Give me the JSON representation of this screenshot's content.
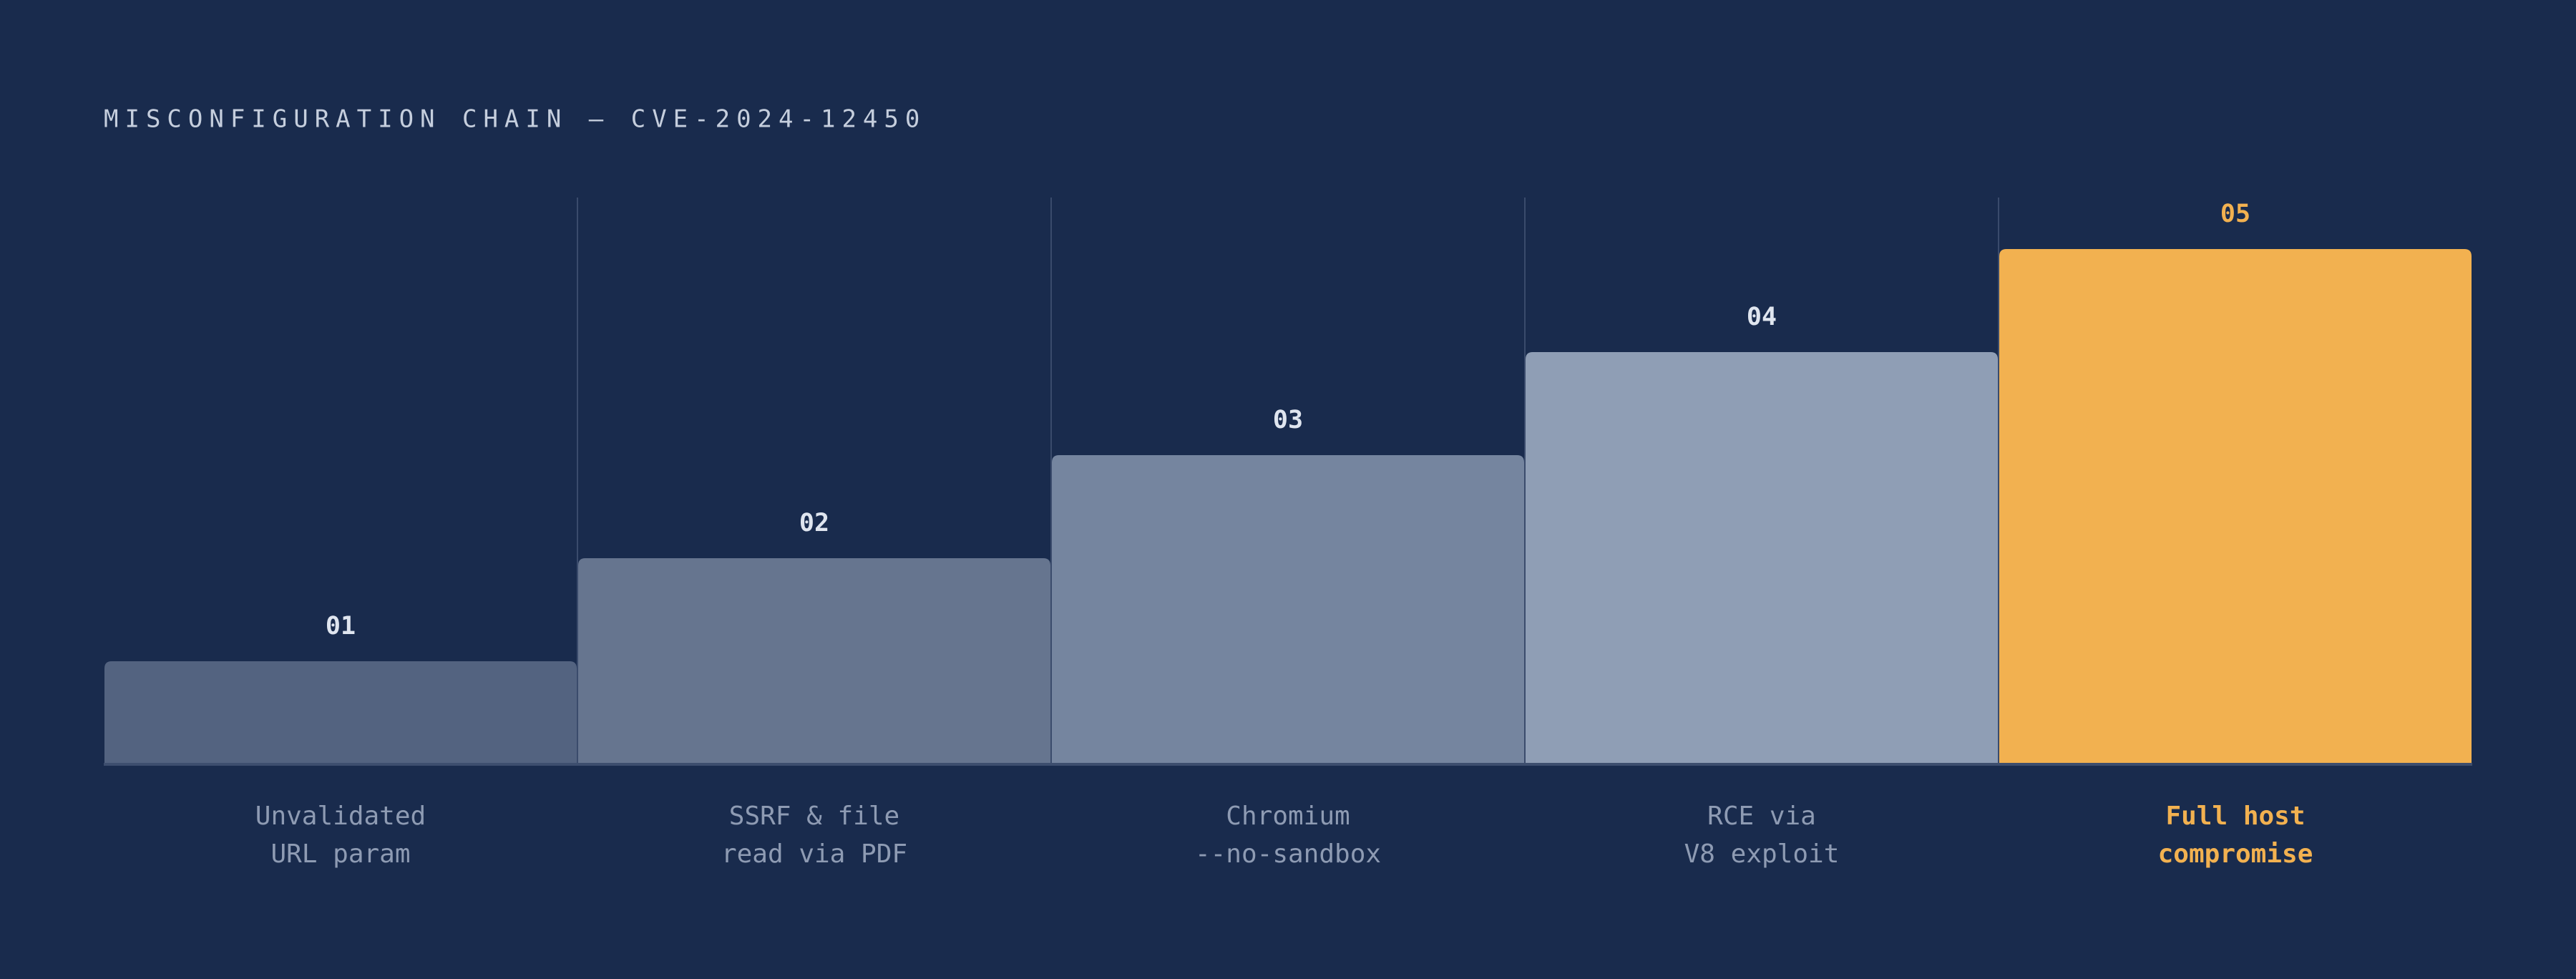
{
  "chart_data": {
    "type": "bar",
    "title": "MISCONFIGURATION CHAIN — CVE-2024-12450",
    "categories": [
      [
        "Unvalidated",
        "URL param"
      ],
      [
        "SSRF & file",
        "read via PDF"
      ],
      [
        "Chromium",
        "--no-sandbox"
      ],
      [
        "RCE via",
        "V8 exploit"
      ],
      [
        "Full host",
        "compromise"
      ]
    ],
    "values": [
      1,
      2,
      3,
      4,
      5
    ],
    "value_labels": [
      "01",
      "02",
      "03",
      "04",
      "05"
    ],
    "colors": [
      "#536380",
      "#66758f",
      "#75859f",
      "#8f9eb5",
      "#f2b150"
    ],
    "highlight": 4,
    "ylim": [
      0,
      5.5
    ]
  }
}
